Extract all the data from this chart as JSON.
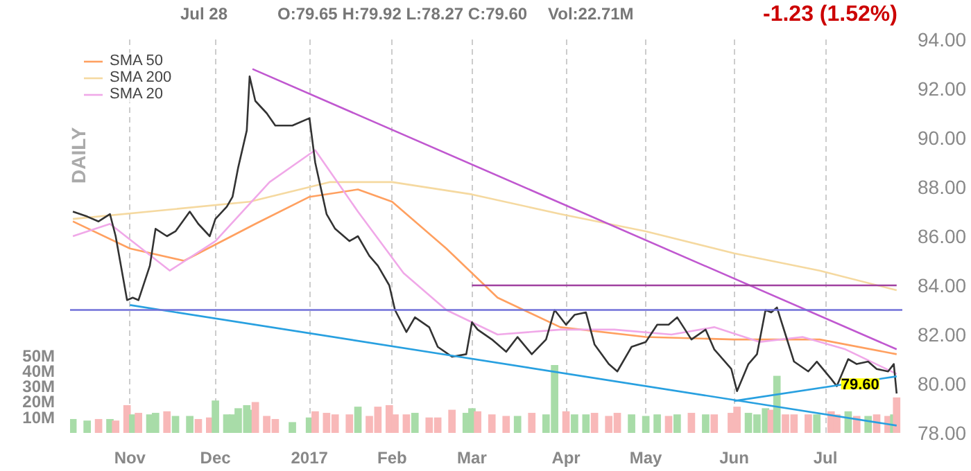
{
  "chart_data": {
    "type": "line",
    "annotations": [
      "Jul 28",
      "O:79.65 H:79.92 L:78.27 C:79.60",
      "Vol:22.71M",
      "-1.23 (1.52%)",
      "DAILY",
      {
        "text": "79.60",
        "x": "2017-07-28",
        "y": 79.6
      }
    ],
    "xlim": [
      "2016-10-11",
      "2017-07-30"
    ],
    "xticks": [
      {
        "value": "2016-11-01",
        "label": "Nov"
      },
      {
        "value": "2016-12-01",
        "label": "Dec"
      },
      {
        "value": "2017-01-03",
        "label": "2017"
      },
      {
        "value": "2017-02-01",
        "label": "Feb"
      },
      {
        "value": "2017-03-01",
        "label": "Mar"
      },
      {
        "value": "2017-04-03",
        "label": "Apr"
      },
      {
        "value": "2017-05-01",
        "label": "May"
      },
      {
        "value": "2017-06-01",
        "label": "Jun"
      },
      {
        "value": "2017-07-03",
        "label": "Jul"
      }
    ],
    "ylim": [
      78,
      94
    ],
    "yticks": [
      {
        "value": 78,
        "label": "78.00"
      },
      {
        "value": 80,
        "label": "80.00"
      },
      {
        "value": 82,
        "label": "82.00"
      },
      {
        "value": 84,
        "label": "84.00"
      },
      {
        "value": 86,
        "label": "86.00"
      },
      {
        "value": 88,
        "label": "88.00"
      },
      {
        "value": 90,
        "label": "90.00"
      },
      {
        "value": 92,
        "label": "92.00"
      },
      {
        "value": 94,
        "label": "94.00"
      }
    ],
    "y2lim": [
      0,
      255
    ],
    "y2ticks": [
      {
        "value": 10,
        "label": "10M"
      },
      {
        "value": 20,
        "label": "20M"
      },
      {
        "value": 30,
        "label": "30M"
      },
      {
        "value": 40,
        "label": "40M"
      },
      {
        "value": 50,
        "label": "50M"
      }
    ],
    "grid": true,
    "legend": "top left",
    "ref_lines": [
      {
        "axis": "y",
        "value": 83,
        "color": "#7070d8"
      }
    ],
    "series": [
      {
        "type": "bar",
        "axis": "y2",
        "x": [
          "2016-10-12",
          "2016-10-17",
          "2016-10-21",
          "2016-10-25",
          "2016-10-27",
          "2016-10-31",
          "2016-11-02",
          "2016-11-04",
          "2016-11-08",
          "2016-11-10",
          "2016-11-14",
          "2016-11-17",
          "2016-11-22",
          "2016-11-25",
          "2016-11-29",
          "2016-12-01",
          "2016-12-05",
          "2016-12-07",
          "2016-12-09",
          "2016-12-12",
          "2016-12-13",
          "2016-12-15",
          "2016-12-19",
          "2016-12-22",
          "2016-12-28",
          "2017-01-03",
          "2017-01-05",
          "2017-01-09",
          "2017-01-12",
          "2017-01-17",
          "2017-01-20",
          "2017-01-24",
          "2017-01-27",
          "2017-01-31",
          "2017-02-02",
          "2017-02-06",
          "2017-02-09",
          "2017-02-14",
          "2017-02-17",
          "2017-02-22",
          "2017-02-27",
          "2017-03-01",
          "2017-03-03",
          "2017-03-08",
          "2017-03-13",
          "2017-03-17",
          "2017-03-22",
          "2017-03-27",
          "2017-03-30",
          "2017-04-03",
          "2017-04-06",
          "2017-04-10",
          "2017-04-13",
          "2017-04-18",
          "2017-04-21",
          "2017-04-26",
          "2017-05-01",
          "2017-05-05",
          "2017-05-09",
          "2017-05-12",
          "2017-05-17",
          "2017-05-22",
          "2017-05-25",
          "2017-05-31",
          "2017-06-02",
          "2017-06-06",
          "2017-06-09",
          "2017-06-12",
          "2017-06-14",
          "2017-06-16",
          "2017-06-19",
          "2017-06-22",
          "2017-06-27",
          "2017-06-30",
          "2017-07-05",
          "2017-07-07",
          "2017-07-11",
          "2017-07-14",
          "2017-07-18",
          "2017-07-21",
          "2017-07-25",
          "2017-07-27",
          "2017-07-28"
        ],
        "values": [
          9,
          8,
          9,
          9,
          8,
          18,
          12,
          13,
          12,
          13,
          14,
          11,
          11,
          9,
          10,
          21,
          12,
          12,
          16,
          18,
          15,
          20,
          11,
          9,
          7,
          10,
          14,
          13,
          12,
          12,
          17,
          11,
          17,
          18,
          12,
          12,
          13,
          10,
          10,
          15,
          13,
          16,
          14,
          12,
          11,
          11,
          13,
          12,
          44,
          14,
          12,
          12,
          13,
          11,
          13,
          12,
          11,
          12,
          11,
          12,
          13,
          12,
          12,
          13,
          17,
          13,
          12,
          16,
          15,
          37,
          12,
          12,
          12,
          12,
          14,
          12,
          14,
          11,
          11,
          12,
          11,
          12,
          23
        ],
        "colors": [
          "#a8dca8",
          "#a8dca8",
          "#f8b8b8",
          "#a8dca8",
          "#f8b8b8",
          "#f8b8b8",
          "#a8dca8",
          "#f8b8b8",
          "#a8dca8",
          "#a8dca8",
          "#f8b8b8",
          "#a8dca8",
          "#a8dca8",
          "#f8b8b8",
          "#f8b8b8",
          "#a8dca8",
          "#a8dca8",
          "#a8dca8",
          "#a8dca8",
          "#a8dca8",
          "#a8dca8",
          "#f8b8b8",
          "#f8b8b8",
          "#f8b8b8",
          "#a8dca8",
          "#a8dca8",
          "#f8b8b8",
          "#f8b8b8",
          "#f8b8b8",
          "#f8b8b8",
          "#a8dca8",
          "#f8b8b8",
          "#f8b8b8",
          "#f8b8b8",
          "#f8b8b8",
          "#f8b8b8",
          "#a8dca8",
          "#f8b8b8",
          "#f8b8b8",
          "#f8b8b8",
          "#a8dca8",
          "#a8dca8",
          "#f8b8b8",
          "#f8b8b8",
          "#f8b8b8",
          "#a8dca8",
          "#f8b8b8",
          "#a8dca8",
          "#a8dca8",
          "#f8b8b8",
          "#a8dca8",
          "#a8dca8",
          "#f8b8b8",
          "#f8b8b8",
          "#f8b8b8",
          "#a8dca8",
          "#a8dca8",
          "#a8dca8",
          "#f8b8b8",
          "#a8dca8",
          "#f8b8b8",
          "#a8dca8",
          "#f8b8b8",
          "#f8b8b8",
          "#f8b8b8",
          "#a8dca8",
          "#a8dca8",
          "#a8dca8",
          "#f8b8b8",
          "#a8dca8",
          "#f8b8b8",
          "#f8b8b8",
          "#f8b8b8",
          "#a8dca8",
          "#f8b8b8",
          "#f8b8b8",
          "#a8dca8",
          "#f8b8b8",
          "#a8dca8",
          "#f8b8b8",
          "#f8b8b8",
          "#a8dca8",
          "#f8b8b8"
        ]
      },
      {
        "name": "SMA 50",
        "color": "#ffa060",
        "x": [
          "2016-10-12",
          "2016-11-01",
          "2016-11-20",
          "2016-12-15",
          "2017-01-03",
          "2017-01-20",
          "2017-02-01",
          "2017-02-20",
          "2017-03-10",
          "2017-04-01",
          "2017-05-01",
          "2017-06-01",
          "2017-07-01",
          "2017-07-28"
        ],
        "values": [
          86.6,
          85.5,
          85.0,
          86.5,
          87.6,
          87.9,
          87.4,
          85.5,
          83.5,
          82.3,
          81.9,
          81.8,
          81.8,
          81.2
        ]
      },
      {
        "name": "SMA 200",
        "color": "#f5d9a0",
        "x": [
          "2016-10-12",
          "2016-12-13",
          "2017-01-10",
          "2017-02-01",
          "2017-03-01",
          "2017-04-01",
          "2017-05-01",
          "2017-06-01",
          "2017-07-01",
          "2017-07-28"
        ],
        "values": [
          86.7,
          87.4,
          88.2,
          88.2,
          87.7,
          86.9,
          86.2,
          85.3,
          84.6,
          83.8
        ]
      },
      {
        "name": "SMA 20",
        "color": "#f0a8e8",
        "x": [
          "2016-10-12",
          "2016-10-25",
          "2016-11-15",
          "2016-12-01",
          "2016-12-20",
          "2017-01-05",
          "2017-01-20",
          "2017-02-05",
          "2017-02-20",
          "2017-03-10",
          "2017-04-01",
          "2017-04-20",
          "2017-05-10",
          "2017-05-25",
          "2017-06-10",
          "2017-06-25",
          "2017-07-10",
          "2017-07-28"
        ],
        "values": [
          86.0,
          86.5,
          84.6,
          85.8,
          88.2,
          89.5,
          87.0,
          84.5,
          83.0,
          82.0,
          82.2,
          82.2,
          82.0,
          82.3,
          81.7,
          81.9,
          81.4,
          80.4
        ]
      },
      {
        "color": "#333333",
        "x": [
          "2016-10-12",
          "2016-10-17",
          "2016-10-21",
          "2016-10-25",
          "2016-10-27",
          "2016-10-31",
          "2016-11-02",
          "2016-11-04",
          "2016-11-08",
          "2016-11-10",
          "2016-11-14",
          "2016-11-17",
          "2016-11-22",
          "2016-11-25",
          "2016-11-29",
          "2016-12-01",
          "2016-12-05",
          "2016-12-07",
          "2016-12-09",
          "2016-12-12",
          "2016-12-13",
          "2016-12-15",
          "2016-12-19",
          "2016-12-22",
          "2016-12-28",
          "2017-01-03",
          "2017-01-05",
          "2017-01-09",
          "2017-01-12",
          "2017-01-17",
          "2017-01-20",
          "2017-01-24",
          "2017-01-27",
          "2017-01-31",
          "2017-02-02",
          "2017-02-06",
          "2017-02-09",
          "2017-02-14",
          "2017-02-17",
          "2017-02-22",
          "2017-02-27",
          "2017-03-01",
          "2017-03-03",
          "2017-03-08",
          "2017-03-13",
          "2017-03-17",
          "2017-03-22",
          "2017-03-27",
          "2017-03-30",
          "2017-04-03",
          "2017-04-06",
          "2017-04-10",
          "2017-04-13",
          "2017-04-18",
          "2017-04-21",
          "2017-04-26",
          "2017-05-01",
          "2017-05-05",
          "2017-05-09",
          "2017-05-12",
          "2017-05-17",
          "2017-05-22",
          "2017-05-25",
          "2017-05-31",
          "2017-06-02",
          "2017-06-06",
          "2017-06-09",
          "2017-06-12",
          "2017-06-14",
          "2017-06-16",
          "2017-06-19",
          "2017-06-22",
          "2017-06-27",
          "2017-06-30",
          "2017-07-05",
          "2017-07-07",
          "2017-07-11",
          "2017-07-14",
          "2017-07-18",
          "2017-07-21",
          "2017-07-25",
          "2017-07-27",
          "2017-07-28"
        ],
        "values": [
          87.0,
          86.8,
          86.6,
          86.9,
          86.0,
          83.4,
          83.5,
          83.4,
          84.8,
          86.3,
          86.0,
          86.2,
          87.0,
          86.5,
          86.0,
          86.7,
          87.2,
          87.6,
          88.8,
          90.3,
          92.5,
          91.5,
          91.0,
          90.5,
          90.5,
          90.8,
          89.0,
          86.9,
          86.3,
          85.8,
          86.0,
          85.2,
          84.8,
          84.0,
          83.0,
          82.1,
          82.7,
          82.3,
          81.5,
          81.1,
          81.2,
          82.5,
          82.2,
          81.8,
          81.3,
          81.9,
          81.2,
          81.8,
          83.0,
          82.4,
          82.8,
          82.9,
          81.6,
          80.8,
          80.5,
          81.5,
          81.7,
          82.4,
          82.4,
          82.7,
          81.8,
          82.2,
          81.4,
          80.6,
          79.7,
          80.8,
          81.2,
          83.0,
          82.9,
          83.1,
          82.0,
          80.9,
          80.5,
          80.9,
          80.2,
          79.9,
          81.0,
          80.8,
          80.9,
          80.6,
          80.5,
          80.8,
          79.6
        ]
      },
      {
        "color": "#c058d0",
        "x": [
          "2016-12-14",
          "2017-07-28"
        ],
        "values": [
          92.8,
          81.4
        ]
      },
      {
        "color": "#a040a0",
        "x": [
          "2017-03-01",
          "2017-07-28"
        ],
        "values": [
          84.0,
          84.0
        ]
      },
      {
        "color": "#28a0e0",
        "x": [
          "2016-11-01",
          "2017-07-28"
        ],
        "values": [
          83.2,
          78.3
        ]
      },
      {
        "color": "#28a0e0",
        "x": [
          "2017-06-01",
          "2017-07-28"
        ],
        "values": [
          79.3,
          80.3
        ]
      }
    ]
  }
}
